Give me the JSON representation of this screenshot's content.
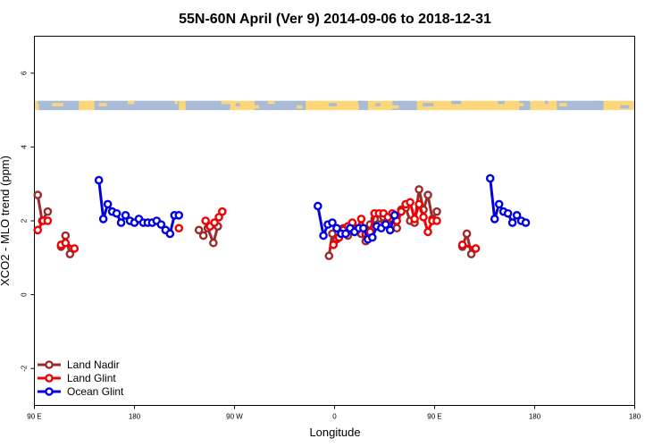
{
  "chart_data": {
    "type": "line",
    "title": "55N-60N April (Ver 9)   2014-09-06 to 2018-12-31",
    "xlabel": "Longitude",
    "ylabel": "XCO2 - MLO trend (ppm)",
    "xlim": [
      0,
      540
    ],
    "ylim": [
      -3,
      7
    ],
    "x_ticks": [
      {
        "value": 0,
        "label": "90 E"
      },
      {
        "value": 90,
        "label": "180"
      },
      {
        "value": 180,
        "label": "90 W"
      },
      {
        "value": 270,
        "label": "0"
      },
      {
        "value": 360,
        "label": "90 E"
      },
      {
        "value": 450,
        "label": "180"
      }
    ],
    "y_ticks": [
      -2,
      0,
      2,
      4,
      6
    ],
    "grid": false,
    "legend_position": "bottom-left",
    "map_band": {
      "y_from": 5.0,
      "y_to": 5.25,
      "land_color": "#FBD77A",
      "ocean_color": "#A8BCD9"
    },
    "series": [
      {
        "name": "Land Nadir",
        "color": "#9E2A2B",
        "segments": [
          [
            [
              3,
              2.7
            ],
            [
              7,
              2.0
            ],
            [
              12,
              2.25
            ]
          ],
          [
            [
              24,
              1.3
            ],
            [
              28,
              1.6
            ],
            [
              32,
              1.1
            ]
          ],
          [
            [
              148,
              1.75
            ],
            [
              152,
              1.6
            ],
            [
              156,
              1.8
            ],
            [
              161,
              1.4
            ],
            [
              165,
              1.85
            ]
          ],
          [
            [
              265,
              1.05
            ],
            [
              268,
              1.65
            ],
            [
              272,
              1.5
            ]
          ],
          [
            [
              278,
              1.8
            ],
            [
              282,
              1.6
            ],
            [
              286,
              1.9
            ],
            [
              290,
              1.75
            ],
            [
              294,
              1.65
            ],
            [
              298,
              1.45
            ],
            [
              302,
              1.9
            ],
            [
              306,
              2.05
            ]
          ],
          [
            [
              310,
              1.9
            ],
            [
              314,
              2.1
            ],
            [
              318,
              2.0
            ],
            [
              322,
              2.05
            ],
            [
              326,
              1.8
            ],
            [
              330,
              2.3
            ],
            [
              334,
              2.35
            ],
            [
              338,
              2.0
            ],
            [
              342,
              1.95
            ],
            [
              346,
              2.85
            ],
            [
              350,
              2.3
            ],
            [
              354,
              2.7
            ],
            [
              358,
              2.05
            ],
            [
              362,
              2.25
            ]
          ],
          [
            [
              385,
              1.3
            ],
            [
              389,
              1.65
            ],
            [
              393,
              1.1
            ]
          ]
        ]
      },
      {
        "name": "Land Glint",
        "color": "#F00000",
        "segments": [
          [
            [
              3,
              1.75
            ],
            [
              8,
              2.0
            ],
            [
              12,
              2.0
            ]
          ],
          [
            [
              24,
              1.35
            ],
            [
              28,
              1.4
            ],
            [
              36,
              1.25
            ]
          ],
          [
            [
              130,
              1.8
            ]
          ],
          [
            [
              154,
              2.0
            ],
            [
              158,
              1.85
            ],
            [
              162,
              1.95
            ],
            [
              166,
              2.1
            ],
            [
              169,
              2.25
            ]
          ],
          [
            [
              269,
              1.35
            ],
            [
              274,
              1.55
            ],
            [
              278,
              1.75
            ],
            [
              282,
              1.85
            ],
            [
              286,
              1.95
            ],
            [
              290,
              1.75
            ],
            [
              294,
              2.05
            ],
            [
              298,
              1.65
            ],
            [
              302,
              1.7
            ],
            [
              306,
              2.2
            ],
            [
              310,
              2.2
            ],
            [
              314,
              2.2
            ],
            [
              318,
              2.1
            ],
            [
              322,
              2.2
            ],
            [
              326,
              2.0
            ],
            [
              330,
              2.25
            ],
            [
              334,
              2.45
            ],
            [
              338,
              2.5
            ],
            [
              342,
              2.05
            ],
            [
              346,
              2.45
            ],
            [
              350,
              2.1
            ],
            [
              354,
              1.7
            ],
            [
              358,
              2.0
            ],
            [
              362,
              2.0
            ]
          ],
          [
            [
              385,
              1.35
            ],
            [
              397,
              1.25
            ]
          ]
        ]
      },
      {
        "name": "Ocean Glint",
        "color": "#0000E0",
        "segments": [
          [
            [
              58,
              3.1
            ],
            [
              62,
              2.05
            ],
            [
              66,
              2.45
            ],
            [
              70,
              2.25
            ],
            [
              74,
              2.2
            ],
            [
              78,
              1.95
            ],
            [
              82,
              2.15
            ],
            [
              86,
              2.0
            ],
            [
              90,
              1.95
            ],
            [
              94,
              2.05
            ],
            [
              98,
              1.95
            ],
            [
              102,
              1.95
            ],
            [
              106,
              1.95
            ],
            [
              110,
              2.0
            ],
            [
              114,
              1.9
            ],
            [
              118,
              1.75
            ],
            [
              122,
              1.65
            ],
            [
              126,
              2.15
            ],
            [
              130,
              2.15
            ]
          ],
          [
            [
              255,
              2.4
            ],
            [
              260,
              1.6
            ],
            [
              264,
              1.9
            ],
            [
              268,
              1.95
            ],
            [
              272,
              1.8
            ],
            [
              276,
              1.65
            ],
            [
              280,
              1.65
            ],
            [
              284,
              1.8
            ],
            [
              288,
              1.7
            ],
            [
              292,
              1.8
            ],
            [
              296,
              1.8
            ],
            [
              300,
              1.5
            ],
            [
              304,
              1.55
            ],
            [
              308,
              1.85
            ],
            [
              312,
              1.8
            ],
            [
              316,
              1.9
            ],
            [
              320,
              1.75
            ],
            [
              324,
              2.15
            ]
          ],
          [
            [
              410,
              3.15
            ],
            [
              414,
              2.05
            ],
            [
              418,
              2.45
            ],
            [
              422,
              2.25
            ],
            [
              426,
              2.2
            ],
            [
              430,
              1.95
            ],
            [
              434,
              2.15
            ],
            [
              438,
              2.0
            ],
            [
              442,
              1.95
            ]
          ]
        ]
      }
    ]
  }
}
